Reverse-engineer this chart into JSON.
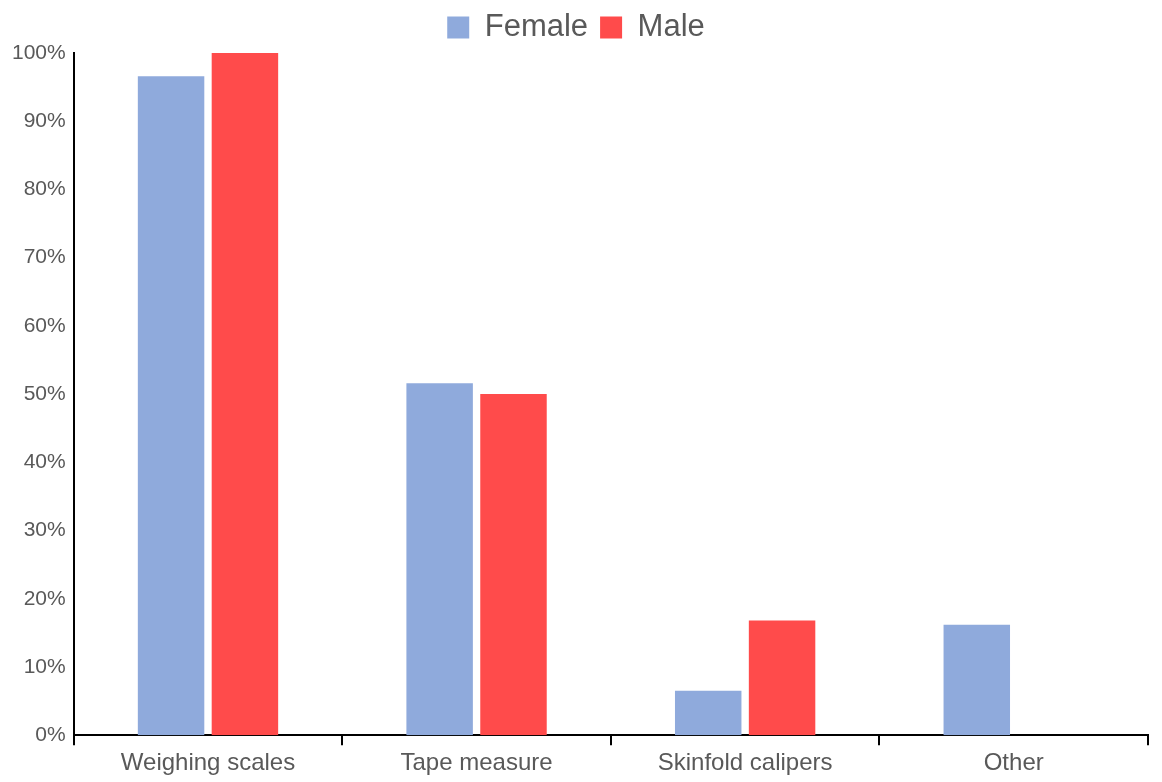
{
  "chart_data": {
    "type": "bar",
    "categories": [
      "Weighing scales",
      "Tape measure",
      "Skinfold calipers",
      "Other"
    ],
    "series": [
      {
        "name": "Female",
        "color": "#8faadc",
        "values": [
          96.6,
          51.6,
          6.5,
          16.2
        ]
      },
      {
        "name": "Male",
        "color": "#ff4b4b",
        "values": [
          100,
          50,
          16.8,
          0
        ]
      }
    ],
    "ylim": [
      0,
      100
    ],
    "yticks": [
      {
        "value": 0,
        "label": "0%"
      },
      {
        "value": 10,
        "label": "10%"
      },
      {
        "value": 20,
        "label": "20%"
      },
      {
        "value": 30,
        "label": "30%"
      },
      {
        "value": 40,
        "label": "40%"
      },
      {
        "value": 50,
        "label": "50%"
      },
      {
        "value": 60,
        "label": "60%"
      },
      {
        "value": 70,
        "label": "70%"
      },
      {
        "value": 80,
        "label": "80%"
      },
      {
        "value": 90,
        "label": "90%"
      },
      {
        "value": 100,
        "label": "100%"
      }
    ],
    "grid": false,
    "legend": "top"
  }
}
